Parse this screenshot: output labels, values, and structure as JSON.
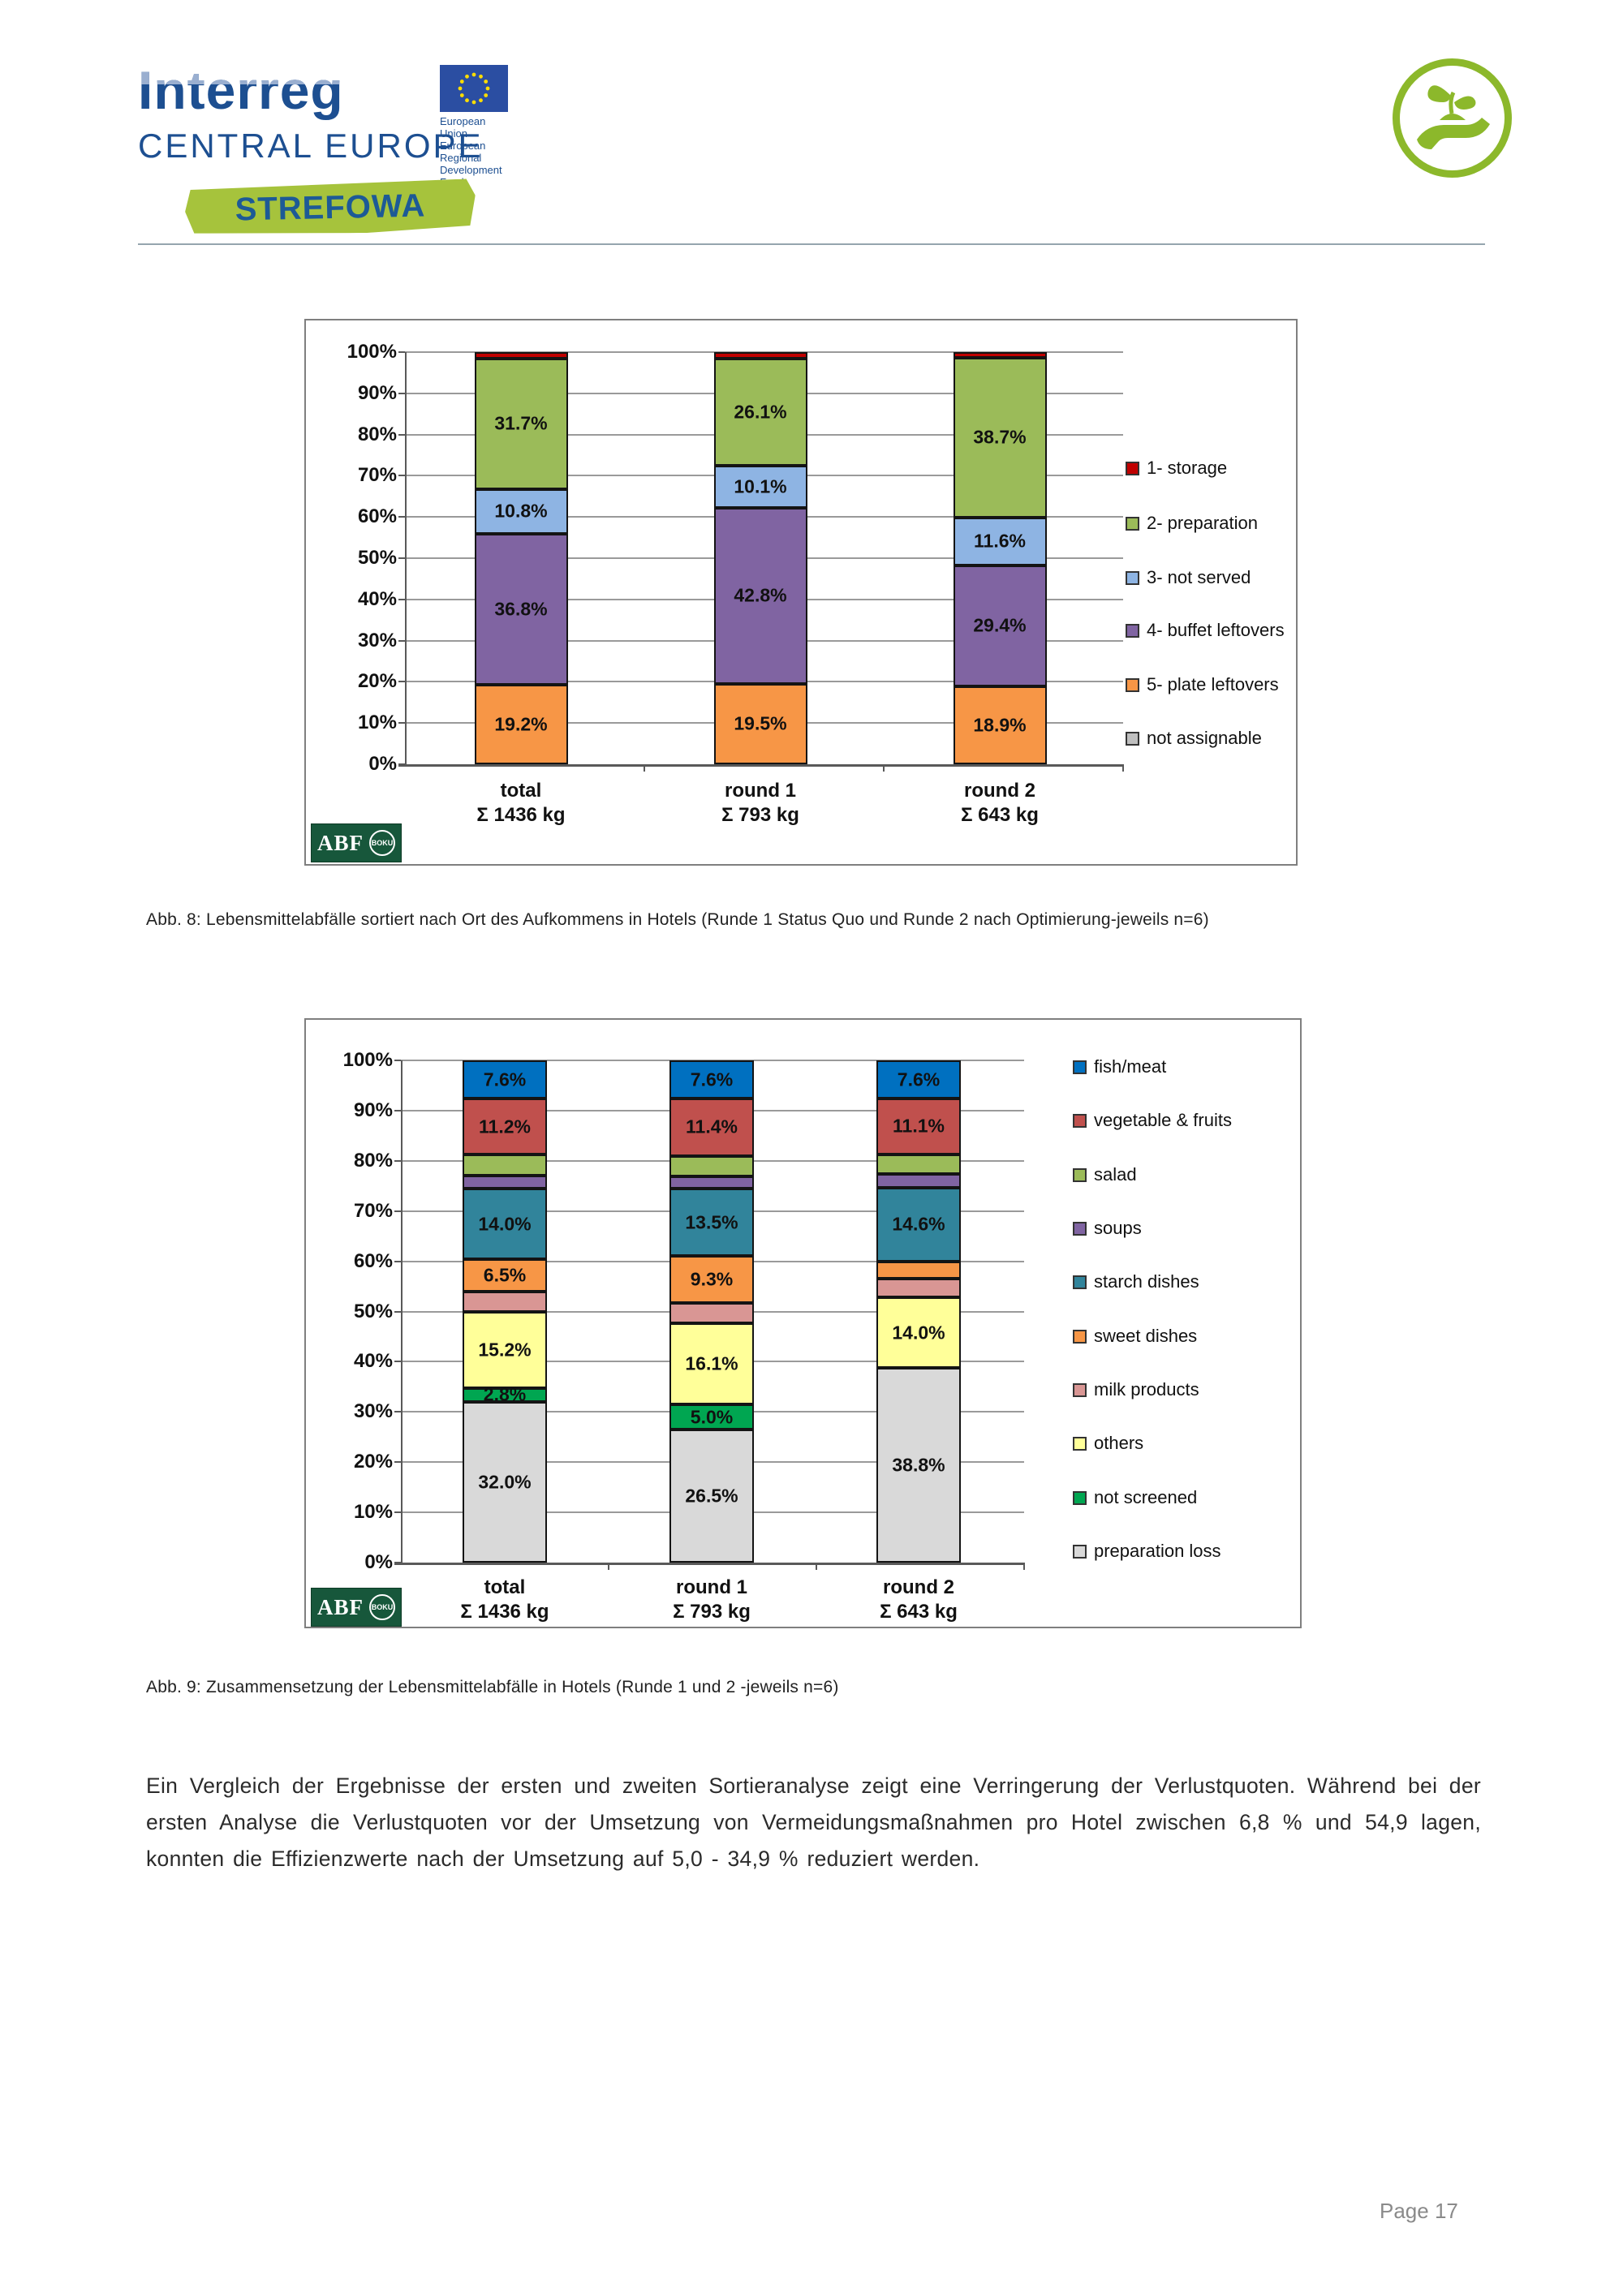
{
  "header": {
    "interreg": "Interreg",
    "central_europe": "CENTRAL EUROPE",
    "eu_lines": [
      "European Union",
      "European Regional",
      "Development Fund"
    ],
    "strefowa": "STREFOWA"
  },
  "logos": {
    "abf": "ABF",
    "boku": "BOKU"
  },
  "captions": {
    "abb8": "Abb. 8: Lebensmittelabfälle sortiert nach Ort des Aufkommens in Hotels (Runde 1 Status Quo und Runde 2 nach Optimierung-jeweils n=6)",
    "abb9": "Abb. 9: Zusammensetzung der Lebensmittelabfälle in Hotels (Runde 1 und 2 -jeweils n=6)"
  },
  "paragraph": "Ein Vergleich der Ergebnisse der ersten und zweiten Sortieranalyse zeigt eine Verringerung der Verlustquoten. Während bei der ersten Analyse die Verlustquoten vor der Umsetzung von Vermeidungsmaßnahmen pro Hotel zwischen 6,8 % und 54,9 lagen, konnten die Effizienzwerte nach der Umsetzung auf 5,0 - 34,9 % reduziert werden.",
  "footer": {
    "page": "Page 17"
  },
  "chart_data": [
    {
      "type": "bar",
      "stacked": true,
      "percent_axis": true,
      "title": "",
      "xlabel": "",
      "ylabel": "",
      "ylim": [
        0,
        100
      ],
      "grid": true,
      "legend_position": "right",
      "y_ticks": [
        "100%",
        "90%",
        "80%",
        "70%",
        "60%",
        "50%",
        "40%",
        "30%",
        "20%",
        "10%",
        "0%"
      ],
      "categories": [
        [
          "total",
          "Σ 1436 kg"
        ],
        [
          "round 1",
          "Σ 793 kg"
        ],
        [
          "round 2",
          "Σ 643 kg"
        ]
      ],
      "series": [
        {
          "name": "5- plate leftovers",
          "color": "#F79646",
          "values": [
            19.2,
            19.5,
            18.9
          ],
          "labels": [
            "19.2%",
            "19.5%",
            "18.9%"
          ]
        },
        {
          "name": "4- buffet leftovers",
          "color": "#8064A2",
          "values": [
            36.8,
            42.8,
            29.4
          ],
          "labels": [
            "36.8%",
            "42.8%",
            "29.4%"
          ]
        },
        {
          "name": "3- not served",
          "color": "#8EB4E3",
          "values": [
            10.8,
            10.1,
            11.6
          ],
          "labels": [
            "10.8%",
            "10.1%",
            "11.6%"
          ]
        },
        {
          "name": "2- preparation",
          "color": "#9BBB59",
          "values": [
            31.7,
            26.1,
            38.7
          ],
          "labels": [
            "31.7%",
            "26.1%",
            "38.7%"
          ]
        },
        {
          "name": "1- storage",
          "color": "#C00000",
          "values": [
            1.5,
            1.5,
            1.4
          ],
          "labels": [
            "",
            "",
            ""
          ]
        },
        {
          "name": "not assignable",
          "color": "#BFBFBF",
          "values": [
            0,
            0,
            0
          ],
          "labels": [
            "",
            "",
            ""
          ]
        }
      ],
      "legend": [
        {
          "label": "1- storage",
          "color": "#C00000"
        },
        {
          "label": "2- preparation",
          "color": "#9BBB59"
        },
        {
          "label": "3- not served",
          "color": "#8EB4E3"
        },
        {
          "label": "4- buffet leftovers",
          "color": "#8064A2"
        },
        {
          "label": "5- plate leftovers",
          "color": "#F79646"
        },
        {
          "label": "not assignable",
          "color": "#BFBFBF"
        }
      ]
    },
    {
      "type": "bar",
      "stacked": true,
      "percent_axis": true,
      "title": "",
      "xlabel": "",
      "ylabel": "",
      "ylim": [
        0,
        100
      ],
      "grid": true,
      "legend_position": "right",
      "y_ticks": [
        "100%",
        "90%",
        "80%",
        "70%",
        "60%",
        "50%",
        "40%",
        "30%",
        "20%",
        "10%",
        "0%"
      ],
      "categories": [
        [
          "total",
          "Σ 1436 kg"
        ],
        [
          "round 1",
          "Σ 793 kg"
        ],
        [
          "round 2",
          "Σ 643 kg"
        ]
      ],
      "series": [
        {
          "name": "preparation loss",
          "color": "#D9D9D9",
          "values": [
            32.0,
            26.5,
            38.8
          ],
          "labels": [
            "32.0%",
            "26.5%",
            "38.8%"
          ]
        },
        {
          "name": "not screened",
          "color": "#00A651",
          "values": [
            2.8,
            5.0,
            0.0
          ],
          "labels": [
            "2.8%",
            "5.0%",
            ""
          ]
        },
        {
          "name": "others",
          "color": "#FFFF99",
          "values": [
            15.2,
            16.1,
            14.0
          ],
          "labels": [
            "15.2%",
            "16.1%",
            "14.0%"
          ]
        },
        {
          "name": "milk products",
          "color": "#D99694",
          "values": [
            3.9,
            4.1,
            3.7
          ],
          "labels": [
            "",
            "",
            ""
          ]
        },
        {
          "name": "sweet dishes",
          "color": "#F79646",
          "values": [
            6.5,
            9.3,
            3.5
          ],
          "labels": [
            "6.5%",
            "9.3%",
            ""
          ]
        },
        {
          "name": "starch dishes",
          "color": "#31849B",
          "values": [
            14.0,
            13.5,
            14.6
          ],
          "labels": [
            "14.0%",
            "13.5%",
            "14.6%"
          ]
        },
        {
          "name": "soups",
          "color": "#8064A2",
          "values": [
            2.7,
            2.4,
            2.8
          ],
          "labels": [
            "",
            "",
            ""
          ]
        },
        {
          "name": "salad",
          "color": "#9BBB59",
          "values": [
            4.1,
            4.1,
            3.9
          ],
          "labels": [
            "",
            "",
            ""
          ]
        },
        {
          "name": "vegetable & fruits",
          "color": "#C0504D",
          "values": [
            11.2,
            11.4,
            11.1
          ],
          "labels": [
            "11.2%",
            "11.4%",
            "11.1%"
          ]
        },
        {
          "name": "fish/meat",
          "color": "#0070C0",
          "values": [
            7.6,
            7.6,
            7.6
          ],
          "labels": [
            "7.6%",
            "7.6%",
            "7.6%"
          ]
        }
      ],
      "legend": [
        {
          "label": "fish/meat",
          "color": "#0070C0"
        },
        {
          "label": "vegetable & fruits",
          "color": "#C0504D"
        },
        {
          "label": "salad",
          "color": "#9BBB59"
        },
        {
          "label": "soups",
          "color": "#8064A2"
        },
        {
          "label": "starch dishes",
          "color": "#31849B"
        },
        {
          "label": "sweet dishes",
          "color": "#F79646"
        },
        {
          "label": "milk products",
          "color": "#D99694"
        },
        {
          "label": "others",
          "color": "#FFFF99"
        },
        {
          "label": "not screened",
          "color": "#00A651"
        },
        {
          "label": "preparation loss",
          "color": "#D9D9D9"
        }
      ]
    }
  ]
}
